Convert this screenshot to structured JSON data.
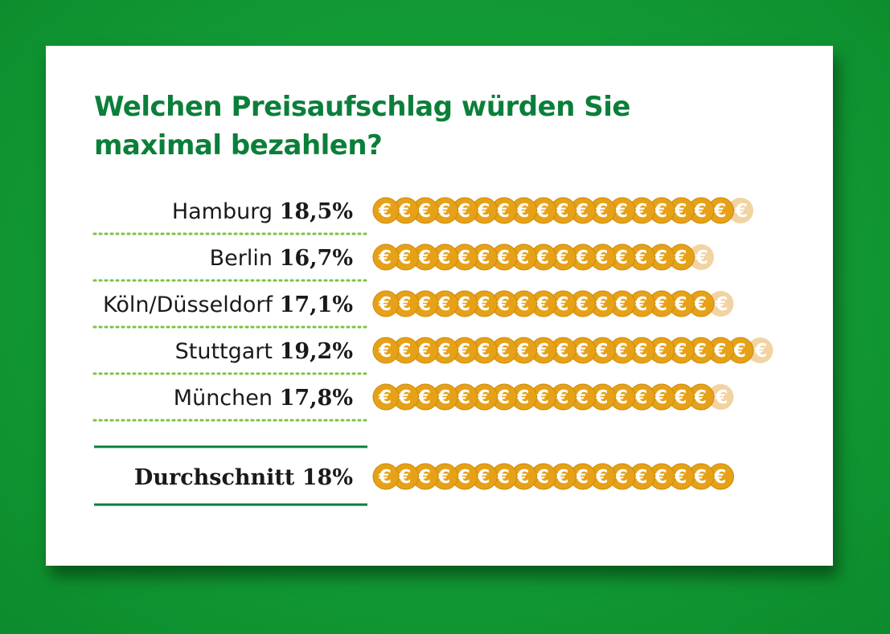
{
  "chart_data": {
    "type": "bar",
    "title": "Welchen Preisaufschlag würden Sie maximal bezahlen?",
    "title_lines": [
      "Welchen Preisaufschlag würden Sie",
      "maximal bezahlen?"
    ],
    "unit": "%",
    "coin_symbol": "€",
    "categories": [
      "Hamburg",
      "Berlin",
      "Köln/Düsseldorf",
      "Stuttgart",
      "München"
    ],
    "values": [
      18.5,
      16.7,
      17.1,
      19.2,
      17.8
    ],
    "value_labels": [
      "18,5%",
      "16,7%",
      "17,1%",
      "19,2%",
      "17,8%"
    ],
    "average": {
      "label": "Durchschnitt",
      "value": 18,
      "value_label": "18%"
    },
    "colors": {
      "background": "#129a35",
      "title": "#0b7f3a",
      "divider": "#0b7f3a",
      "dotted_divider": "#7cc243",
      "coin": "#e6a117",
      "coin_edge": "#c98a0c",
      "coin_faded": "#f2d3a2"
    }
  }
}
